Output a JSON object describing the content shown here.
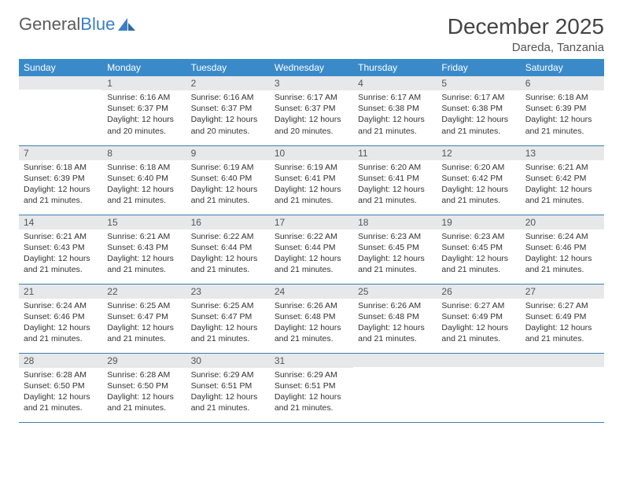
{
  "brand": {
    "word1": "General",
    "word2": "Blue"
  },
  "title": "December 2025",
  "location": "Dareda, Tanzania",
  "colors": {
    "header_bg": "#3a8ac9",
    "header_text": "#ffffff",
    "daynum_bg": "#e7e8e9",
    "row_border": "#3a7fb0",
    "brand_gray": "#5a5a5a",
    "brand_blue": "#3a7fc4"
  },
  "typography": {
    "title_size": 28,
    "day_text_size": 10.5
  },
  "weekdays": [
    "Sunday",
    "Monday",
    "Tuesday",
    "Wednesday",
    "Thursday",
    "Friday",
    "Saturday"
  ],
  "grid": [
    [
      {
        "n": "",
        "lines": []
      },
      {
        "n": "1",
        "lines": [
          "Sunrise: 6:16 AM",
          "Sunset: 6:37 PM",
          "Daylight: 12 hours and 20 minutes."
        ]
      },
      {
        "n": "2",
        "lines": [
          "Sunrise: 6:16 AM",
          "Sunset: 6:37 PM",
          "Daylight: 12 hours and 20 minutes."
        ]
      },
      {
        "n": "3",
        "lines": [
          "Sunrise: 6:17 AM",
          "Sunset: 6:37 PM",
          "Daylight: 12 hours and 20 minutes."
        ]
      },
      {
        "n": "4",
        "lines": [
          "Sunrise: 6:17 AM",
          "Sunset: 6:38 PM",
          "Daylight: 12 hours and 21 minutes."
        ]
      },
      {
        "n": "5",
        "lines": [
          "Sunrise: 6:17 AM",
          "Sunset: 6:38 PM",
          "Daylight: 12 hours and 21 minutes."
        ]
      },
      {
        "n": "6",
        "lines": [
          "Sunrise: 6:18 AM",
          "Sunset: 6:39 PM",
          "Daylight: 12 hours and 21 minutes."
        ]
      }
    ],
    [
      {
        "n": "7",
        "lines": [
          "Sunrise: 6:18 AM",
          "Sunset: 6:39 PM",
          "Daylight: 12 hours and 21 minutes."
        ]
      },
      {
        "n": "8",
        "lines": [
          "Sunrise: 6:18 AM",
          "Sunset: 6:40 PM",
          "Daylight: 12 hours and 21 minutes."
        ]
      },
      {
        "n": "9",
        "lines": [
          "Sunrise: 6:19 AM",
          "Sunset: 6:40 PM",
          "Daylight: 12 hours and 21 minutes."
        ]
      },
      {
        "n": "10",
        "lines": [
          "Sunrise: 6:19 AM",
          "Sunset: 6:41 PM",
          "Daylight: 12 hours and 21 minutes."
        ]
      },
      {
        "n": "11",
        "lines": [
          "Sunrise: 6:20 AM",
          "Sunset: 6:41 PM",
          "Daylight: 12 hours and 21 minutes."
        ]
      },
      {
        "n": "12",
        "lines": [
          "Sunrise: 6:20 AM",
          "Sunset: 6:42 PM",
          "Daylight: 12 hours and 21 minutes."
        ]
      },
      {
        "n": "13",
        "lines": [
          "Sunrise: 6:21 AM",
          "Sunset: 6:42 PM",
          "Daylight: 12 hours and 21 minutes."
        ]
      }
    ],
    [
      {
        "n": "14",
        "lines": [
          "Sunrise: 6:21 AM",
          "Sunset: 6:43 PM",
          "Daylight: 12 hours and 21 minutes."
        ]
      },
      {
        "n": "15",
        "lines": [
          "Sunrise: 6:21 AM",
          "Sunset: 6:43 PM",
          "Daylight: 12 hours and 21 minutes."
        ]
      },
      {
        "n": "16",
        "lines": [
          "Sunrise: 6:22 AM",
          "Sunset: 6:44 PM",
          "Daylight: 12 hours and 21 minutes."
        ]
      },
      {
        "n": "17",
        "lines": [
          "Sunrise: 6:22 AM",
          "Sunset: 6:44 PM",
          "Daylight: 12 hours and 21 minutes."
        ]
      },
      {
        "n": "18",
        "lines": [
          "Sunrise: 6:23 AM",
          "Sunset: 6:45 PM",
          "Daylight: 12 hours and 21 minutes."
        ]
      },
      {
        "n": "19",
        "lines": [
          "Sunrise: 6:23 AM",
          "Sunset: 6:45 PM",
          "Daylight: 12 hours and 21 minutes."
        ]
      },
      {
        "n": "20",
        "lines": [
          "Sunrise: 6:24 AM",
          "Sunset: 6:46 PM",
          "Daylight: 12 hours and 21 minutes."
        ]
      }
    ],
    [
      {
        "n": "21",
        "lines": [
          "Sunrise: 6:24 AM",
          "Sunset: 6:46 PM",
          "Daylight: 12 hours and 21 minutes."
        ]
      },
      {
        "n": "22",
        "lines": [
          "Sunrise: 6:25 AM",
          "Sunset: 6:47 PM",
          "Daylight: 12 hours and 21 minutes."
        ]
      },
      {
        "n": "23",
        "lines": [
          "Sunrise: 6:25 AM",
          "Sunset: 6:47 PM",
          "Daylight: 12 hours and 21 minutes."
        ]
      },
      {
        "n": "24",
        "lines": [
          "Sunrise: 6:26 AM",
          "Sunset: 6:48 PM",
          "Daylight: 12 hours and 21 minutes."
        ]
      },
      {
        "n": "25",
        "lines": [
          "Sunrise: 6:26 AM",
          "Sunset: 6:48 PM",
          "Daylight: 12 hours and 21 minutes."
        ]
      },
      {
        "n": "26",
        "lines": [
          "Sunrise: 6:27 AM",
          "Sunset: 6:49 PM",
          "Daylight: 12 hours and 21 minutes."
        ]
      },
      {
        "n": "27",
        "lines": [
          "Sunrise: 6:27 AM",
          "Sunset: 6:49 PM",
          "Daylight: 12 hours and 21 minutes."
        ]
      }
    ],
    [
      {
        "n": "28",
        "lines": [
          "Sunrise: 6:28 AM",
          "Sunset: 6:50 PM",
          "Daylight: 12 hours and 21 minutes."
        ]
      },
      {
        "n": "29",
        "lines": [
          "Sunrise: 6:28 AM",
          "Sunset: 6:50 PM",
          "Daylight: 12 hours and 21 minutes."
        ]
      },
      {
        "n": "30",
        "lines": [
          "Sunrise: 6:29 AM",
          "Sunset: 6:51 PM",
          "Daylight: 12 hours and 21 minutes."
        ]
      },
      {
        "n": "31",
        "lines": [
          "Sunrise: 6:29 AM",
          "Sunset: 6:51 PM",
          "Daylight: 12 hours and 21 minutes."
        ]
      },
      {
        "n": "",
        "lines": []
      },
      {
        "n": "",
        "lines": []
      },
      {
        "n": "",
        "lines": []
      }
    ]
  ]
}
